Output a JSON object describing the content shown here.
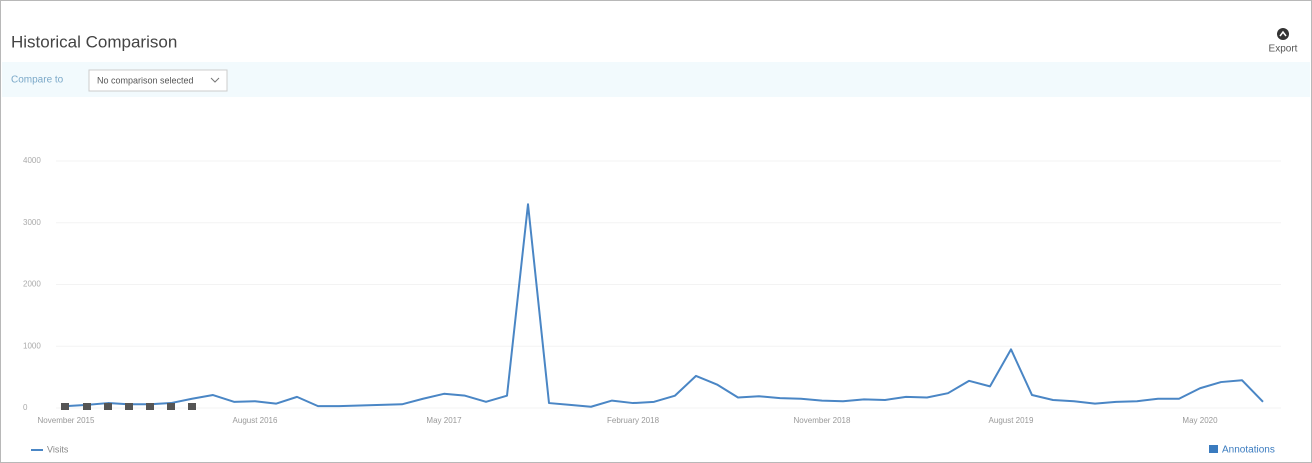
{
  "header": {
    "title": "Historical Comparison",
    "export": "Export"
  },
  "toolbar": {
    "compare_label": "Compare to",
    "compare_value": "No comparison selected"
  },
  "footer": {
    "annotations": "Annotations"
  },
  "chart_data": {
    "type": "line",
    "categories": [
      "November 2015",
      null,
      null,
      null,
      null,
      null,
      null,
      null,
      null,
      "August 2016",
      null,
      null,
      null,
      null,
      null,
      null,
      null,
      null,
      "May 2017",
      null,
      null,
      null,
      null,
      null,
      null,
      null,
      null,
      "February 2018",
      null,
      null,
      null,
      null,
      null,
      null,
      null,
      null,
      "November 2018",
      null,
      null,
      null,
      null,
      null,
      null,
      null,
      null,
      "August 2019",
      null,
      null,
      null,
      null,
      null,
      null,
      null,
      null,
      "May 2020",
      null,
      null,
      null
    ],
    "series": [
      {
        "name": "Visits",
        "color": "#4a86c5",
        "values": [
          30,
          50,
          80,
          60,
          60,
          80,
          150,
          210,
          100,
          110,
          70,
          180,
          30,
          30,
          40,
          50,
          60,
          150,
          230,
          200,
          100,
          200,
          3300,
          80,
          50,
          20,
          120,
          80,
          100,
          200,
          520,
          380,
          170,
          190,
          160,
          150,
          120,
          110,
          140,
          130,
          180,
          170,
          240,
          440,
          350,
          950,
          210,
          130,
          110,
          70,
          100,
          110,
          150,
          150,
          320,
          420,
          450,
          100
        ]
      }
    ],
    "ylim": [
      0,
      4000
    ],
    "yticks": [
      0,
      1000,
      2000,
      3000,
      4000
    ],
    "grid": true
  }
}
